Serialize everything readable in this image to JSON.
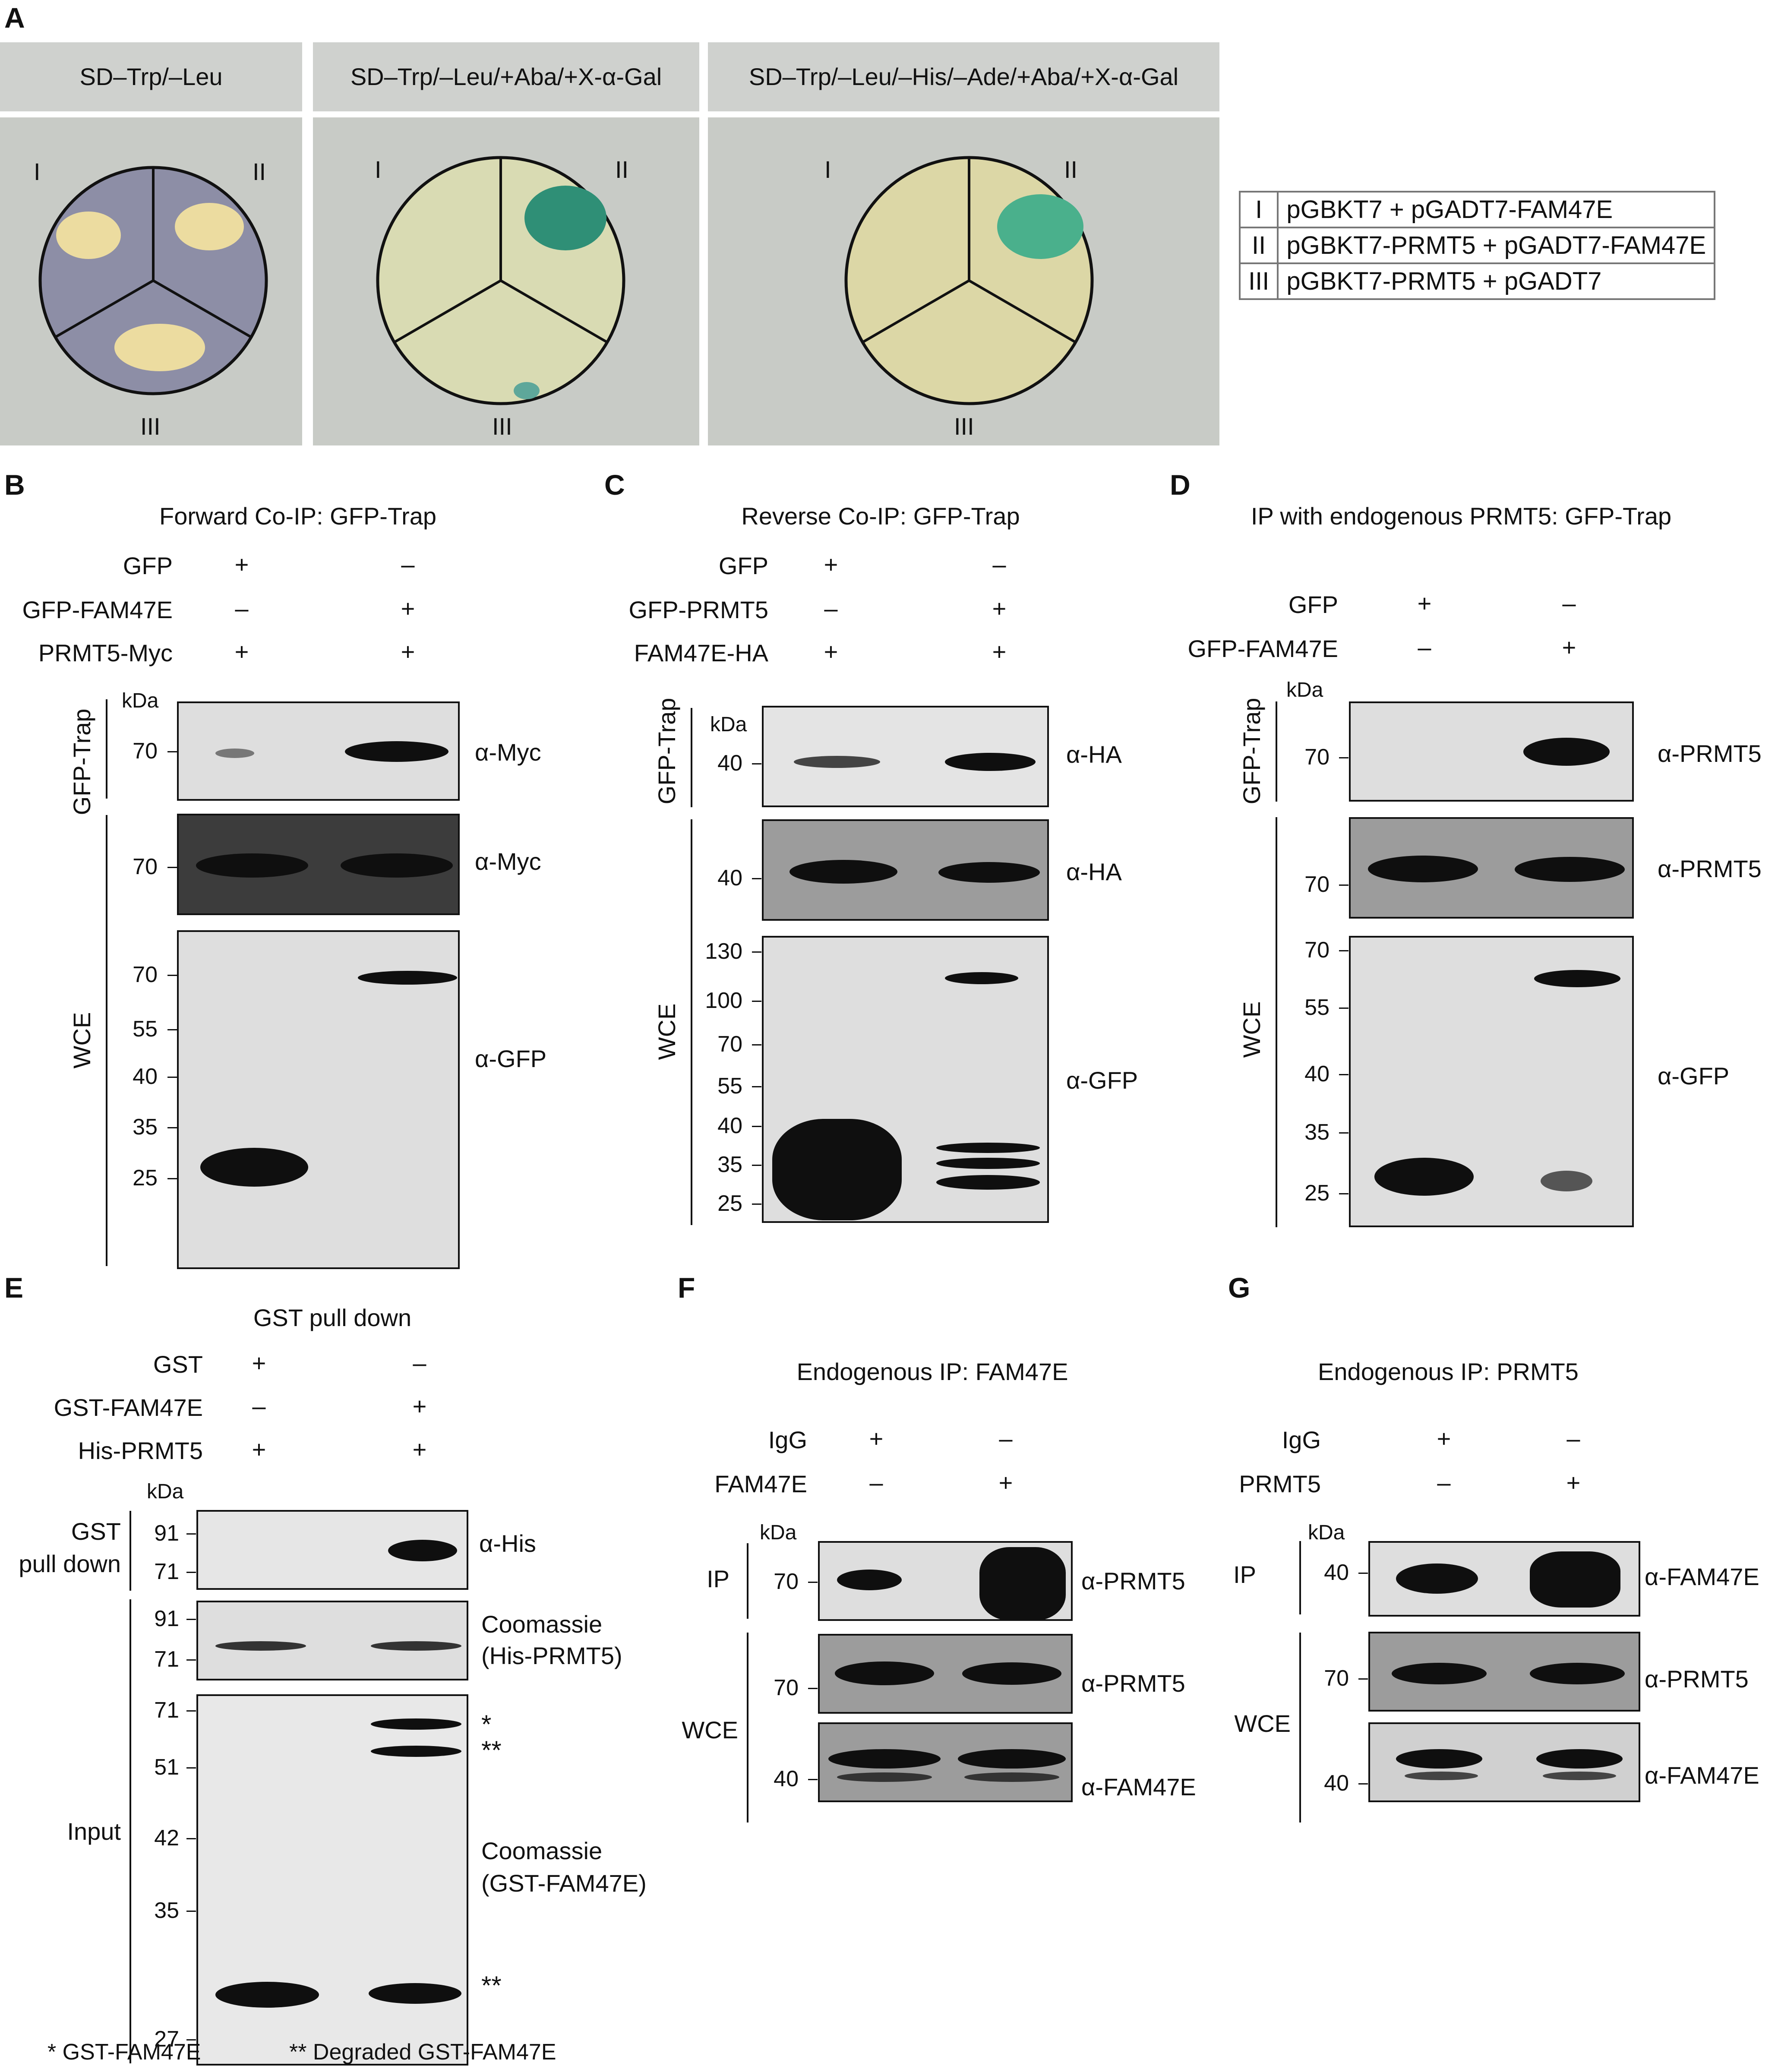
{
  "panelA": {
    "label": "A",
    "plates": [
      {
        "header": "SD–Trp/–Leu",
        "sectors": [
          "I",
          "II",
          "III"
        ]
      },
      {
        "header": "SD–Trp/–Leu/+Aba/+X-α-Gal",
        "sectors": [
          "I",
          "II",
          "III"
        ]
      },
      {
        "header": "SD–Trp/–Leu/–His/–Ade/+Aba/+X-α-Gal",
        "sectors": [
          "I",
          "II",
          "III"
        ]
      }
    ],
    "key": [
      {
        "num": "I",
        "text": "pGBKT7 +  pGADT7-FAM47E"
      },
      {
        "num": "II",
        "text": "pGBKT7-PRMT5 + pGADT7-FAM47E"
      },
      {
        "num": "III",
        "text": "pGBKT7-PRMT5 + pGADT7"
      }
    ]
  },
  "panelB": {
    "label": "B",
    "title": "Forward Co-IP: GFP-Trap",
    "rows": [
      {
        "name": "GFP",
        "v": [
          "+",
          "–"
        ]
      },
      {
        "name": "GFP-FAM47E",
        "v": [
          "–",
          "+"
        ]
      },
      {
        "name": "PRMT5-Myc",
        "v": [
          "+",
          "+"
        ]
      }
    ],
    "kda": "kDa",
    "group1": "GFP-Trap",
    "group2": "WCE",
    "blots": [
      {
        "marks": [
          "70"
        ],
        "ab": "α-Myc"
      },
      {
        "marks": [
          "70"
        ],
        "ab": "α-Myc"
      },
      {
        "marks": [
          "70",
          "55",
          "40",
          "35",
          "25"
        ],
        "ab": "α-GFP"
      }
    ]
  },
  "panelC": {
    "label": "C",
    "title": "Reverse Co-IP: GFP-Trap",
    "rows": [
      {
        "name": "GFP",
        "v": [
          "+",
          "–"
        ]
      },
      {
        "name": "GFP-PRMT5",
        "v": [
          "–",
          "+"
        ]
      },
      {
        "name": "FAM47E-HA",
        "v": [
          "+",
          "+"
        ]
      }
    ],
    "kda": "kDa",
    "group1": "GFP-Trap",
    "group2": "WCE",
    "blots": [
      {
        "marks": [
          "40"
        ],
        "ab": "α-HA"
      },
      {
        "marks": [
          "40"
        ],
        "ab": "α-HA"
      },
      {
        "marks": [
          "130",
          "100",
          "70",
          "55",
          "40",
          "35",
          "25"
        ],
        "ab": "α-GFP"
      }
    ]
  },
  "panelD": {
    "label": "D",
    "title": "IP with endogenous PRMT5: GFP-Trap",
    "rows": [
      {
        "name": "GFP",
        "v": [
          "+",
          "–"
        ]
      },
      {
        "name": "GFP-FAM47E",
        "v": [
          "–",
          "+"
        ]
      }
    ],
    "kda": "kDa",
    "group1": "GFP-Trap",
    "group2": "WCE",
    "blots": [
      {
        "marks": [
          "70"
        ],
        "ab": "α-PRMT5"
      },
      {
        "marks": [
          "70"
        ],
        "ab": "α-PRMT5"
      },
      {
        "marks": [
          "70",
          "55",
          "40",
          "35",
          "25"
        ],
        "ab": "α-GFP"
      }
    ]
  },
  "panelE": {
    "label": "E",
    "title": "GST pull down",
    "rows": [
      {
        "name": "GST",
        "v": [
          "+",
          "–"
        ]
      },
      {
        "name": "GST-FAM47E",
        "v": [
          "–",
          "+"
        ]
      },
      {
        "name": "His-PRMT5",
        "v": [
          "+",
          "+"
        ]
      }
    ],
    "kda": "kDa",
    "group1a": "GST",
    "group1b": "pull down",
    "group2": "Input",
    "blots": [
      {
        "marks": [
          "91",
          "71"
        ],
        "ab": "α-His"
      },
      {
        "marks": [
          "91",
          "71"
        ],
        "ab1": "Coomassie",
        "ab2": "(His-PRMT5)"
      },
      {
        "marks": [
          "71",
          "51",
          "42",
          "35",
          "27"
        ],
        "ab1": "Coomassie",
        "ab2": "(GST-FAM47E)",
        "stars": [
          "*",
          "**",
          "**"
        ]
      }
    ],
    "footnote1": "* GST-FAM47E",
    "footnote2": "** Degraded GST-FAM47E"
  },
  "panelF": {
    "label": "F",
    "title": "Endogenous IP: FAM47E",
    "rows": [
      {
        "name": "IgG",
        "v": [
          "+",
          "–"
        ]
      },
      {
        "name": "FAM47E",
        "v": [
          "–",
          "+"
        ]
      }
    ],
    "kda": "kDa",
    "group1": "IP",
    "group2": "WCE",
    "blots": [
      {
        "marks": [
          "70"
        ],
        "ab": "α-PRMT5"
      },
      {
        "marks": [
          "70"
        ],
        "ab": "α-PRMT5"
      },
      {
        "marks": [
          "40"
        ],
        "ab": "α-FAM47E"
      }
    ]
  },
  "panelG": {
    "label": "G",
    "title": "Endogenous IP: PRMT5",
    "rows": [
      {
        "name": "IgG",
        "v": [
          "+",
          "–"
        ]
      },
      {
        "name": "PRMT5",
        "v": [
          "–",
          "+"
        ]
      }
    ],
    "kda": "kDa",
    "group1": "IP",
    "group2": "WCE",
    "blots": [
      {
        "marks": [
          "40"
        ],
        "ab": "α-FAM47E"
      },
      {
        "marks": [
          "70"
        ],
        "ab": "α-PRMT5"
      },
      {
        "marks": [
          "40"
        ],
        "ab": "α-FAM47E"
      }
    ]
  }
}
